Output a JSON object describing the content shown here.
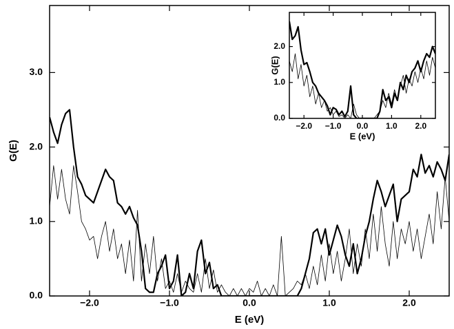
{
  "chart_data": [
    {
      "type": "line",
      "xlabel": "E (eV)",
      "ylabel": "G(E)",
      "xlim": [
        -2.5,
        2.5
      ],
      "ylim": [
        0,
        3.9
      ],
      "xticks": [
        {
          "value": -2.0,
          "label": "−2.0"
        },
        {
          "value": -1.0,
          "label": "−1.0"
        },
        {
          "value": 0.0,
          "label": "0.0"
        },
        {
          "value": 1.0,
          "label": "1.0"
        },
        {
          "value": 2.0,
          "label": "2.0"
        }
      ],
      "yticks": [
        {
          "value": 0.0,
          "label": "0.0"
        },
        {
          "value": 1.0,
          "label": "1.0"
        },
        {
          "value": 2.0,
          "label": "2.0"
        },
        {
          "value": 3.0,
          "label": "3.0"
        }
      ],
      "x": [
        -2.5,
        -2.45,
        -2.4,
        -2.35,
        -2.3,
        -2.25,
        -2.2,
        -2.15,
        -2.1,
        -2.05,
        -2.0,
        -1.95,
        -1.9,
        -1.85,
        -1.8,
        -1.75,
        -1.7,
        -1.65,
        -1.6,
        -1.55,
        -1.5,
        -1.45,
        -1.4,
        -1.35,
        -1.3,
        -1.25,
        -1.2,
        -1.15,
        -1.1,
        -1.05,
        -1.0,
        -0.95,
        -0.9,
        -0.85,
        -0.8,
        -0.75,
        -0.7,
        -0.65,
        -0.6,
        -0.55,
        -0.5,
        -0.45,
        -0.4,
        -0.35,
        -0.3,
        -0.25,
        -0.2,
        -0.15,
        -0.1,
        -0.05,
        0.0,
        0.05,
        0.1,
        0.15,
        0.2,
        0.25,
        0.3,
        0.35,
        0.4,
        0.45,
        0.5,
        0.55,
        0.6,
        0.65,
        0.7,
        0.75,
        0.8,
        0.85,
        0.9,
        0.95,
        1.0,
        1.05,
        1.1,
        1.15,
        1.2,
        1.25,
        1.3,
        1.35,
        1.4,
        1.45,
        1.5,
        1.55,
        1.6,
        1.65,
        1.7,
        1.75,
        1.8,
        1.85,
        1.9,
        1.95,
        2.0,
        2.05,
        2.1,
        2.15,
        2.2,
        2.25,
        2.3,
        2.35,
        2.4,
        2.45,
        2.5
      ],
      "series": [
        {
          "color": "#000000",
          "values": [
            2.4,
            2.2,
            2.05,
            2.3,
            2.45,
            2.5,
            2.0,
            1.6,
            1.5,
            1.35,
            1.3,
            1.25,
            1.4,
            1.55,
            1.7,
            1.6,
            1.55,
            1.25,
            1.2,
            1.1,
            1.2,
            1.05,
            0.95,
            0.6,
            0.1,
            0.05,
            0.05,
            0.3,
            0.4,
            0.55,
            0.1,
            0.2,
            0.55,
            0.0,
            0.05,
            0.3,
            0.1,
            0.6,
            0.75,
            0.3,
            0.45,
            0.1,
            0.15,
            0,
            0,
            0,
            0,
            0,
            0,
            0,
            0,
            0,
            0,
            0,
            0,
            0,
            0,
            0,
            0,
            0,
            0,
            0,
            0,
            0.1,
            0.3,
            0.5,
            0.85,
            0.9,
            0.7,
            0.9,
            0.55,
            0.75,
            0.95,
            0.8,
            0.55,
            0.4,
            0.7,
            0.3,
            0.5,
            0.8,
            1.0,
            1.3,
            1.55,
            1.4,
            1.2,
            1.35,
            1.5,
            1.0,
            1.3,
            1.35,
            1.4,
            1.7,
            1.6,
            1.9,
            1.65,
            1.75,
            1.6,
            1.8,
            1.7,
            1.55,
            1.9
          ]
        },
        {
          "color": "#000000",
          "values": [
            1.2,
            1.75,
            1.3,
            1.7,
            1.3,
            1.1,
            1.75,
            1.4,
            1.0,
            0.9,
            0.75,
            0.8,
            0.5,
            0.8,
            1.0,
            0.6,
            0.9,
            0.5,
            0.7,
            0.3,
            0.75,
            0.2,
            1.15,
            0.2,
            0.7,
            0.3,
            0.8,
            0.2,
            0.5,
            0.1,
            0.2,
            0.05,
            0.3,
            0.05,
            0.2,
            0.1,
            0.05,
            0.3,
            0.05,
            0.5,
            0.1,
            0.35,
            0.05,
            0.15,
            0.05,
            0,
            0.1,
            0,
            0.1,
            0,
            0.1,
            0.05,
            0.2,
            0,
            0.1,
            0,
            0.15,
            0,
            0.8,
            0,
            0.05,
            0.1,
            0.2,
            0.15,
            0.3,
            0.1,
            0.4,
            0.15,
            0.55,
            0.2,
            0.7,
            0.3,
            0.6,
            0.2,
            0.5,
            0.9,
            0.3,
            0.7,
            0.4,
            0.9,
            0.5,
            1.1,
            0.6,
            1.2,
            0.7,
            0.4,
            1.0,
            0.5,
            0.9,
            0.7,
            1.0,
            0.6,
            0.9,
            0.5,
            0.8,
            1.1,
            0.7,
            1.4,
            0.9,
            1.6,
            1.0
          ]
        }
      ]
    },
    {
      "type": "line",
      "xlabel": "E (eV)",
      "ylabel": "G(E)",
      "xlim": [
        -2.5,
        2.5
      ],
      "ylim": [
        0,
        2.95
      ],
      "xticks": [
        {
          "value": -2.0,
          "label": "−2.0"
        },
        {
          "value": -1.0,
          "label": "−1.0"
        },
        {
          "value": 0.0,
          "label": "0.0"
        },
        {
          "value": 1.0,
          "label": "1.0"
        },
        {
          "value": 2.0,
          "label": "2.0"
        }
      ],
      "yticks": [
        {
          "value": 0.0,
          "label": "0.0"
        },
        {
          "value": 1.0,
          "label": "1.0"
        },
        {
          "value": 2.0,
          "label": "2.0"
        }
      ],
      "x": [
        -2.5,
        -2.4,
        -2.3,
        -2.2,
        -2.1,
        -2.0,
        -1.9,
        -1.8,
        -1.7,
        -1.6,
        -1.5,
        -1.4,
        -1.3,
        -1.2,
        -1.1,
        -1.0,
        -0.9,
        -0.8,
        -0.7,
        -0.6,
        -0.5,
        -0.4,
        -0.3,
        -0.2,
        -0.1,
        0.0,
        0.1,
        0.2,
        0.3,
        0.4,
        0.5,
        0.6,
        0.7,
        0.8,
        0.9,
        1.0,
        1.1,
        1.2,
        1.3,
        1.4,
        1.5,
        1.6,
        1.7,
        1.8,
        1.9,
        2.0,
        2.1,
        2.2,
        2.3,
        2.4,
        2.5
      ],
      "series": [
        {
          "color": "#000000",
          "values": [
            2.7,
            2.2,
            2.3,
            2.55,
            1.9,
            1.5,
            1.55,
            1.3,
            1.0,
            0.9,
            0.7,
            0.6,
            0.5,
            0.35,
            0.1,
            0.3,
            0.25,
            0.1,
            0.2,
            0.05,
            0.2,
            0.9,
            0.1,
            0,
            0,
            0,
            0,
            0,
            0,
            0,
            0,
            0.2,
            0.8,
            0.5,
            0.6,
            0.3,
            0.7,
            0.5,
            1.0,
            0.8,
            1.2,
            1.0,
            1.3,
            1.4,
            1.6,
            1.3,
            1.6,
            1.8,
            1.7,
            2.0,
            1.8
          ]
        },
        {
          "color": "#000000",
          "values": [
            1.6,
            1.3,
            1.8,
            1.1,
            1.5,
            0.9,
            1.2,
            0.6,
            0.9,
            0.4,
            0.7,
            0.3,
            0.5,
            0.2,
            0.3,
            0.1,
            0.2,
            0.05,
            0.1,
            0,
            0.1,
            0,
            0.4,
            0.1,
            0,
            0,
            0,
            0,
            0,
            0,
            0.1,
            0.2,
            0.5,
            0.3,
            0.7,
            0.4,
            0.8,
            0.5,
            0.9,
            1.2,
            0.7,
            1.1,
            0.9,
            1.3,
            1.0,
            1.4,
            1.1,
            1.6,
            1.2,
            1.7,
            1.4
          ]
        }
      ]
    }
  ]
}
